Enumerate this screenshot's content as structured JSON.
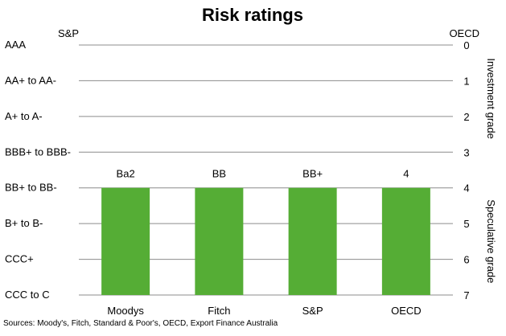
{
  "chart_data": {
    "type": "bar",
    "title": "Risk ratings",
    "left_axis_title": "S&P",
    "right_axis_title": "OECD",
    "left_ticks": [
      "AAA",
      "AA+ to AA-",
      "A+ to A-",
      "BBB+ to BBB-",
      "BB+ to BB-",
      "B+ to B-",
      "CCC+",
      "CCC to C"
    ],
    "right_ticks": [
      "0",
      "1",
      "2",
      "3",
      "4",
      "5",
      "6",
      "7"
    ],
    "ylim": [
      0,
      7
    ],
    "inverted_axis": true,
    "grid": true,
    "bar_baseline": 7,
    "categories": [
      "Moodys",
      "Fitch",
      "S&P",
      "OECD"
    ],
    "values": [
      4,
      4,
      4,
      4
    ],
    "data_labels": [
      "Ba2",
      "BB",
      "BB+",
      "4"
    ],
    "bar_color": "#55ad35",
    "grade_labels": [
      {
        "text": "Investment grade",
        "span": [
          0,
          3
        ]
      },
      {
        "text": "Speculative grade",
        "span": [
          4,
          7
        ]
      }
    ]
  },
  "source": "Sources: Moody's, Fitch, Standard & Poor's, OECD, Export Finance Australia"
}
